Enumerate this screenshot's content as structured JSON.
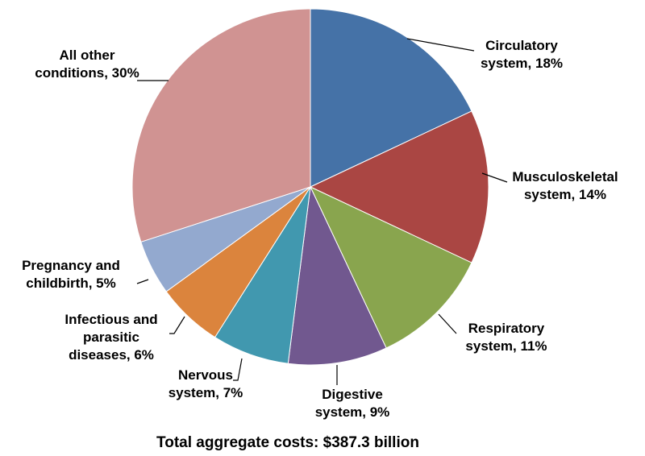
{
  "chart_data": {
    "type": "pie",
    "slices": [
      {
        "label": [
          "Circulatory",
          "system, 18%"
        ],
        "value": 18,
        "color": "#4572A7"
      },
      {
        "label": [
          "Musculoskeletal",
          "system, 14%"
        ],
        "value": 14,
        "color": "#AA4643"
      },
      {
        "label": [
          "Respiratory",
          "system, 11%"
        ],
        "value": 11,
        "color": "#89A54E"
      },
      {
        "label": [
          "Digestive",
          "system, 9%"
        ],
        "value": 9,
        "color": "#71588F"
      },
      {
        "label": [
          "Nervous",
          "system, 7%"
        ],
        "value": 7,
        "color": "#4198AF"
      },
      {
        "label": [
          "Infectious and",
          "parasitic",
          "diseases, 6%"
        ],
        "value": 6,
        "color": "#DB843D"
      },
      {
        "label": [
          "Pregnancy and",
          "childbirth, 5%"
        ],
        "value": 5,
        "color": "#93A9CF"
      },
      {
        "label": [
          "All other",
          "conditions, 30%"
        ],
        "value": 30,
        "color": "#D09392"
      }
    ],
    "footer": "Total aggregate costs:  $387.3 billion",
    "start_angle_degrees": 0,
    "direction": "clockwise",
    "legend": "none"
  }
}
